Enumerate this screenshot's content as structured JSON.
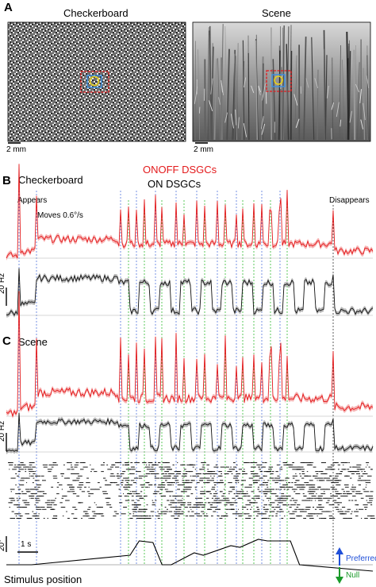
{
  "colors": {
    "onoff": "#e31a1c",
    "onoff_band": "#f6b3b3",
    "on": "#111111",
    "on_band": "#b8b8b8",
    "preferred": "#1f4fd8",
    "null": "#1a9a2a",
    "blue_dash": "#5577dd",
    "green_dash": "#33bb33",
    "black_dash": "#333333",
    "marker_red": "#e31a1c",
    "marker_blue": "#3a8fe0",
    "marker_yellow": "#e8d21c"
  },
  "panel_a": {
    "letter": "A",
    "left_title": "Checkerboard",
    "right_title": "Scene",
    "scalebar_left": "2 mm",
    "scalebar_right": "2 mm"
  },
  "panel_b": {
    "letter": "B",
    "title": "Checkerboard",
    "legend_onoff": "ONOFF DSGCs",
    "legend_on": "ON DSGCs",
    "appears": "Appears",
    "moves": "Moves 0.6°/s",
    "disappears": "Disappears",
    "rate_scale": "20 Hz"
  },
  "panel_c": {
    "letter": "C",
    "title": "Scene",
    "rate_scale": "20 Hz"
  },
  "bottom": {
    "pos_scale": "20°",
    "time_scale": "1 s",
    "stimulus_label": "Stimulus position",
    "preferred": "Preferred",
    "null": "Null"
  },
  "chart_data": {
    "type": "line",
    "x_unit": "s",
    "stimulus_position": {
      "x": [
        0.0,
        0.5,
        0.55,
        2.7,
        2.9,
        3.2,
        3.4,
        3.6,
        4.1,
        4.3,
        4.9,
        5.1,
        5.5,
        5.7,
        6.2,
        6.4,
        8.0
      ],
      "y": [
        0,
        0,
        0,
        12,
        30,
        28,
        0,
        0,
        15,
        12,
        24,
        22,
        32,
        30,
        30,
        0,
        -8
      ]
    }
  }
}
